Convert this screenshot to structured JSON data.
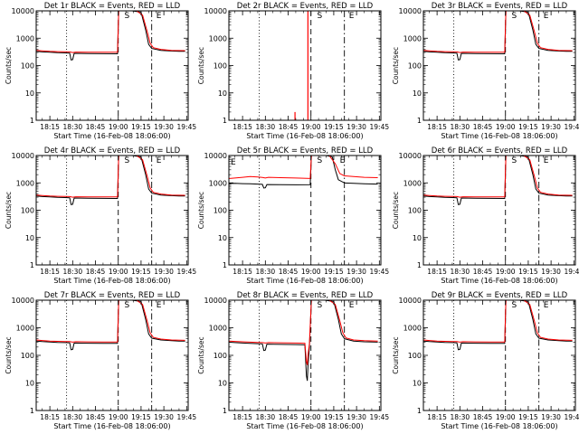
{
  "chart_data": {
    "type": "line",
    "layout": "3x3 grid",
    "y_scale": "log",
    "ylim": [
      1,
      10000
    ],
    "y_ticks": [
      "1",
      "10",
      "100",
      "1000",
      "10000"
    ],
    "ylabel": "Counts/sec",
    "xlabel": "Start Time (16-Feb-08 18:06:00)",
    "x_ticks": [
      "18:15",
      "18:30",
      "18:45",
      "19:00",
      "19:15",
      "19:30",
      "19:45"
    ],
    "series_colors": {
      "events": "#000000",
      "lld": "#ff0000"
    },
    "markers": {
      "S": "S",
      "E": "E"
    },
    "panels": [
      {
        "title": "Det 1r BLACK = Events, RED = LLD",
        "profile": "normal"
      },
      {
        "title": "Det 2r BLACK = Events, RED = LLD",
        "profile": "sparse"
      },
      {
        "title": "Det 3r BLACK = Events, RED = LLD",
        "profile": "normal"
      },
      {
        "title": "Det 4r BLACK = Events, RED = LLD",
        "profile": "normal"
      },
      {
        "title": "Det 5r BLACK = Events, RED = LLD",
        "profile": "high"
      },
      {
        "title": "Det 6r BLACK = Events, RED = LLD",
        "profile": "normal"
      },
      {
        "title": "Det 7r BLACK = Events, RED = LLD",
        "profile": "normal"
      },
      {
        "title": "Det 8r BLACK = Events, RED = LLD",
        "profile": "dip"
      },
      {
        "title": "Det 9r BLACK = Events, RED = LLD",
        "profile": "normal"
      }
    ]
  }
}
